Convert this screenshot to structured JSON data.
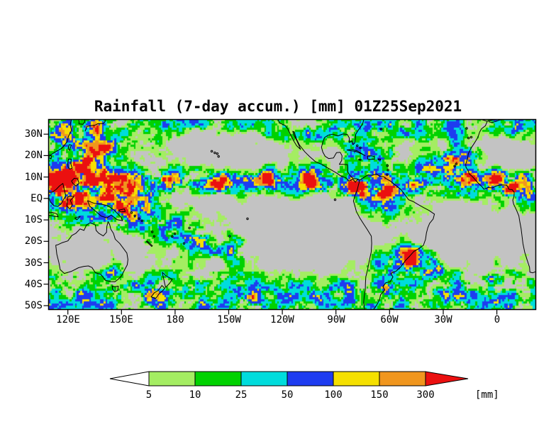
{
  "figure": {
    "background_color": "#ffffff"
  },
  "chart_data": {
    "type": "heatmap",
    "title": "Rainfall (7-day accum.) [mm] 01Z25Sep2021",
    "variable": "Rainfall (7-day accum.)",
    "units": "mm",
    "valid_time": "01Z25Sep2021",
    "projection": "latitude-longitude map",
    "map_background_color": "#c3c3c3",
    "grid": false,
    "legend_position": "bottom horizontal colorbar",
    "lat_range_deg": [
      -52,
      37
    ],
    "lon_range_deg_east": [
      109,
      382
    ],
    "lat_axis": {
      "ticks": [
        {
          "text": "30N",
          "deg": 30
        },
        {
          "text": "20N",
          "deg": 20
        },
        {
          "text": "10N",
          "deg": 10
        },
        {
          "text": "EQ",
          "deg": 0
        },
        {
          "text": "10S",
          "deg": -10
        },
        {
          "text": "20S",
          "deg": -20
        },
        {
          "text": "30S",
          "deg": -30
        },
        {
          "text": "40S",
          "deg": -40
        },
        {
          "text": "50S",
          "deg": -50
        }
      ]
    },
    "lon_axis": {
      "ticks": [
        {
          "text": "120E",
          "deg": 120
        },
        {
          "text": "150E",
          "deg": 150
        },
        {
          "text": "180",
          "deg": 180
        },
        {
          "text": "150W",
          "deg": 210
        },
        {
          "text": "120W",
          "deg": 240
        },
        {
          "text": "90W",
          "deg": 270
        },
        {
          "text": "60W",
          "deg": 300
        },
        {
          "text": "30W",
          "deg": 330
        },
        {
          "text": "0",
          "deg": 360
        }
      ]
    },
    "levels_mm": [
      5,
      10,
      25,
      50,
      100,
      150,
      300
    ],
    "colorbar": {
      "tick_labels": [
        "5",
        "10",
        "25",
        "50",
        "100",
        "150",
        "300"
      ],
      "segment_colors": [
        "#ffffff",
        "#a4ed62",
        "#00d200",
        "#00dcdc",
        "#1e3cf0",
        "#f5e000",
        "#f0961e",
        "#eb1010"
      ],
      "unit_label": "[mm]"
    },
    "features": [
      "ITCZ band of heavy rain (blue with yellow/orange cores) along ~5-10N across the Pacific and Atlantic",
      "Very wet western Pacific warm pool and Maritime Continent",
      "SPCZ diagonal rain band from the Solomon Islands toward 150W/25S with an orange core near 147W,21S",
      "Mid-latitude storm-track rain band spanning 35S-50S around the hemisphere",
      "Dry gray subtropical southeast Pacific west of South America",
      "Intense orange/red rainfall spot over Colombia and the far-eastern Pacific",
      "South Atlantic convergence zone rain southeast of Brazil with orange cores",
      "Tropical Atlantic disturbances with orange cores near 15-22N (hurricane activity)",
      "Rain over equatorial Africa and the Gulf of Guinea",
      "Typhoon-related orange spots near Taiwan and the Philippine Sea"
    ]
  }
}
